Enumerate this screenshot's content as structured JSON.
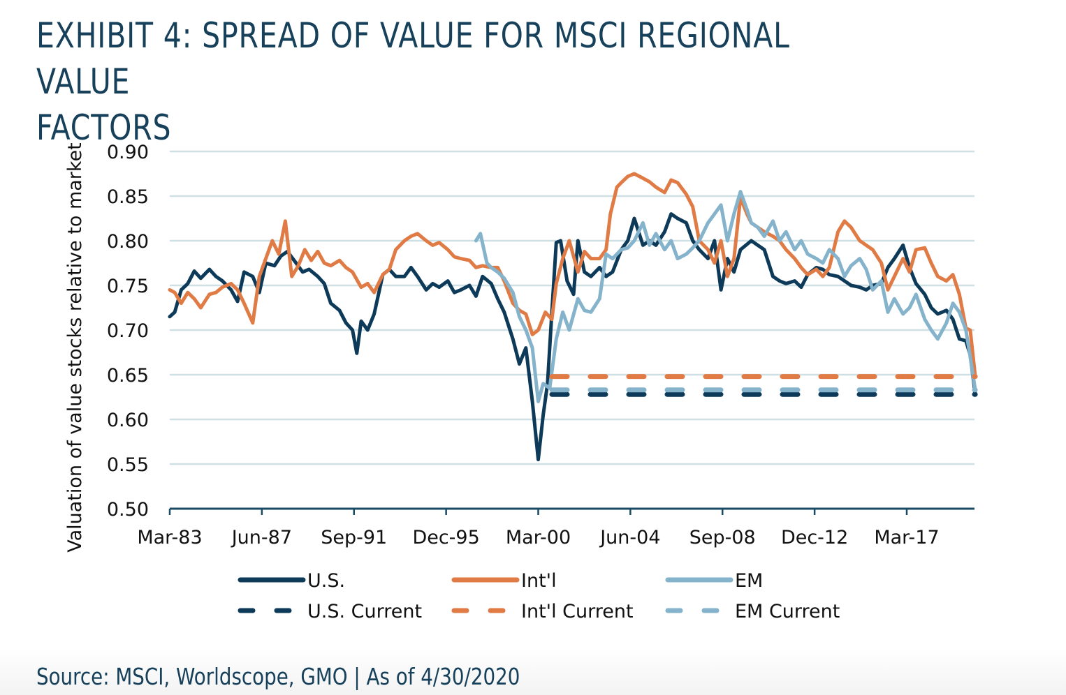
{
  "title": "EXHIBIT 4: SPREAD OF VALUE FOR MSCI REGIONAL VALUE FACTORS",
  "title_lines": [
    "EXHIBIT 4: SPREAD OF VALUE FOR MSCI REGIONAL VALUE",
    "FACTORS"
  ],
  "source": "Source: MSCI, Worldscope, GMO | As of 4/30/2020",
  "colors": {
    "us": "#0e3a5a",
    "intl": "#e07b45",
    "em": "#85b3cc",
    "grid": "#cfe0e5",
    "axis": "#1a4a64",
    "text": "#17405a"
  },
  "chart_data": {
    "type": "line",
    "title": "EXHIBIT 4: SPREAD OF VALUE FOR MSCI REGIONAL VALUE FACTORS",
    "xlabel": "",
    "ylabel": "Valuation of value stocks relative to market",
    "ylim": [
      0.5,
      0.9
    ],
    "yticks": [
      0.5,
      0.55,
      0.6,
      0.65,
      0.7,
      0.75,
      0.8,
      0.85,
      0.9
    ],
    "ytick_labels": [
      "0.50",
      "0.55",
      "0.60",
      "0.65",
      "0.70",
      "0.75",
      "0.80",
      "0.85",
      "0.90"
    ],
    "xlim": [
      1983.17,
      2020.33
    ],
    "xticks": [
      1983.17,
      1987.42,
      1991.67,
      1995.92,
      2000.17,
      2004.42,
      2008.67,
      2012.92,
      2017.17
    ],
    "xtick_labels": [
      "Mar-83",
      "Jun-87",
      "Sep-91",
      "Dec-95",
      "Mar-00",
      "Jun-04",
      "Sep-08",
      "Dec-12",
      "Mar-17"
    ],
    "grid": true,
    "legend_position": "bottom",
    "series": [
      {
        "name": "U.S.",
        "key": "us",
        "style": "solid",
        "x": [
          1983.17,
          1983.4,
          1983.7,
          1984.0,
          1984.3,
          1984.6,
          1985.0,
          1985.3,
          1985.6,
          1986.0,
          1986.3,
          1986.6,
          1987.0,
          1987.3,
          1987.6,
          1988.0,
          1988.3,
          1988.6,
          1989.0,
          1989.3,
          1989.6,
          1990.0,
          1990.3,
          1990.6,
          1991.0,
          1991.3,
          1991.6,
          1991.8,
          1992.0,
          1992.3,
          1992.6,
          1993.0,
          1993.3,
          1993.6,
          1994.0,
          1994.3,
          1994.6,
          1995.0,
          1995.3,
          1995.6,
          1996.0,
          1996.3,
          1996.6,
          1997.0,
          1997.3,
          1997.6,
          1998.0,
          1998.3,
          1998.6,
          1999.0,
          1999.3,
          1999.6,
          1999.9,
          2000.17,
          2000.4,
          2000.6,
          2000.8,
          2001.0,
          2001.2,
          2001.5,
          2001.8,
          2002.0,
          2002.3,
          2002.6,
          2003.0,
          2003.3,
          2003.6,
          2004.0,
          2004.3,
          2004.6,
          2005.0,
          2005.3,
          2005.6,
          2006.0,
          2006.3,
          2006.6,
          2007.0,
          2007.3,
          2007.6,
          2008.0,
          2008.3,
          2008.6,
          2008.9,
          2009.2,
          2009.5,
          2010.0,
          2010.3,
          2010.6,
          2011.0,
          2011.3,
          2011.6,
          2012.0,
          2012.3,
          2012.6,
          2013.0,
          2013.3,
          2013.6,
          2014.0,
          2014.3,
          2014.6,
          2015.0,
          2015.3,
          2015.6,
          2016.0,
          2016.3,
          2016.6,
          2017.0,
          2017.3,
          2017.6,
          2018.0,
          2018.3,
          2018.6,
          2019.0,
          2019.3,
          2019.6,
          2019.9,
          2020.1,
          2020.33
        ],
        "y": [
          0.715,
          0.72,
          0.745,
          0.752,
          0.766,
          0.758,
          0.768,
          0.76,
          0.755,
          0.745,
          0.732,
          0.765,
          0.76,
          0.742,
          0.775,
          0.772,
          0.783,
          0.788,
          0.775,
          0.765,
          0.768,
          0.76,
          0.752,
          0.73,
          0.722,
          0.708,
          0.7,
          0.674,
          0.71,
          0.7,
          0.718,
          0.762,
          0.768,
          0.76,
          0.76,
          0.77,
          0.76,
          0.745,
          0.752,
          0.748,
          0.755,
          0.742,
          0.745,
          0.75,
          0.738,
          0.76,
          0.752,
          0.735,
          0.72,
          0.69,
          0.662,
          0.68,
          0.62,
          0.555,
          0.605,
          0.64,
          0.72,
          0.798,
          0.8,
          0.755,
          0.74,
          0.8,
          0.765,
          0.76,
          0.77,
          0.76,
          0.765,
          0.79,
          0.8,
          0.825,
          0.795,
          0.8,
          0.795,
          0.81,
          0.83,
          0.825,
          0.82,
          0.8,
          0.79,
          0.78,
          0.8,
          0.745,
          0.78,
          0.765,
          0.79,
          0.8,
          0.795,
          0.79,
          0.76,
          0.755,
          0.752,
          0.755,
          0.748,
          0.762,
          0.77,
          0.768,
          0.762,
          0.76,
          0.755,
          0.75,
          0.748,
          0.745,
          0.75,
          0.752,
          0.77,
          0.78,
          0.795,
          0.77,
          0.752,
          0.74,
          0.725,
          0.718,
          0.722,
          0.712,
          0.69,
          0.688,
          0.672,
          0.628
        ]
      },
      {
        "name": "Int'l",
        "key": "intl",
        "style": "solid",
        "x": [
          1983.17,
          1983.4,
          1983.7,
          1984.0,
          1984.3,
          1984.6,
          1985.0,
          1985.3,
          1985.6,
          1986.0,
          1986.3,
          1986.6,
          1987.0,
          1987.3,
          1987.6,
          1987.9,
          1988.2,
          1988.5,
          1988.8,
          1989.1,
          1989.4,
          1989.7,
          1990.0,
          1990.3,
          1990.6,
          1991.0,
          1991.3,
          1991.6,
          1992.0,
          1992.3,
          1992.6,
          1993.0,
          1993.3,
          1993.6,
          1994.0,
          1994.3,
          1994.6,
          1995.0,
          1995.3,
          1995.6,
          1996.0,
          1996.3,
          1996.6,
          1997.0,
          1997.3,
          1997.6,
          1998.0,
          1998.3,
          1998.6,
          1999.0,
          1999.3,
          1999.6,
          1999.9,
          2000.17,
          2000.5,
          2000.8,
          2001.0,
          2001.3,
          2001.6,
          2002.0,
          2002.3,
          2002.6,
          2003.0,
          2003.3,
          2003.5,
          2003.8,
          2004.0,
          2004.3,
          2004.6,
          2005.0,
          2005.3,
          2005.6,
          2006.0,
          2006.3,
          2006.6,
          2007.0,
          2007.3,
          2007.6,
          2008.0,
          2008.3,
          2008.6,
          2008.9,
          2009.2,
          2009.5,
          2009.8,
          2010.0,
          2010.3,
          2010.6,
          2011.0,
          2011.3,
          2011.6,
          2012.0,
          2012.3,
          2012.6,
          2013.0,
          2013.3,
          2013.6,
          2014.0,
          2014.3,
          2014.6,
          2015.0,
          2015.3,
          2015.6,
          2016.0,
          2016.3,
          2016.6,
          2017.0,
          2017.3,
          2017.6,
          2018.0,
          2018.3,
          2018.6,
          2019.0,
          2019.3,
          2019.6,
          2019.9,
          2020.1,
          2020.33
        ],
        "y": [
          0.745,
          0.742,
          0.73,
          0.742,
          0.735,
          0.725,
          0.74,
          0.742,
          0.748,
          0.752,
          0.745,
          0.73,
          0.708,
          0.76,
          0.78,
          0.8,
          0.785,
          0.822,
          0.76,
          0.772,
          0.79,
          0.778,
          0.788,
          0.775,
          0.772,
          0.778,
          0.77,
          0.765,
          0.748,
          0.752,
          0.742,
          0.762,
          0.768,
          0.79,
          0.8,
          0.805,
          0.808,
          0.8,
          0.795,
          0.798,
          0.79,
          0.782,
          0.78,
          0.778,
          0.77,
          0.772,
          0.77,
          0.77,
          0.755,
          0.73,
          0.722,
          0.718,
          0.695,
          0.7,
          0.72,
          0.712,
          0.752,
          0.78,
          0.8,
          0.765,
          0.788,
          0.78,
          0.78,
          0.79,
          0.83,
          0.86,
          0.865,
          0.872,
          0.875,
          0.87,
          0.866,
          0.86,
          0.854,
          0.868,
          0.865,
          0.852,
          0.838,
          0.8,
          0.79,
          0.775,
          0.8,
          0.76,
          0.78,
          0.848,
          0.83,
          0.82,
          0.815,
          0.81,
          0.805,
          0.8,
          0.79,
          0.78,
          0.77,
          0.762,
          0.768,
          0.76,
          0.77,
          0.81,
          0.822,
          0.815,
          0.8,
          0.795,
          0.79,
          0.775,
          0.745,
          0.76,
          0.78,
          0.765,
          0.79,
          0.792,
          0.775,
          0.76,
          0.755,
          0.762,
          0.74,
          0.702,
          0.7,
          0.648
        ]
      },
      {
        "name": "EM",
        "key": "em",
        "style": "solid",
        "x": [
          1997.3,
          1997.5,
          1997.8,
          1998.0,
          1998.3,
          1998.6,
          1999.0,
          1999.3,
          1999.6,
          1999.9,
          2000.17,
          2000.4,
          2000.7,
          2001.0,
          2001.3,
          2001.6,
          2002.0,
          2002.3,
          2002.6,
          2003.0,
          2003.3,
          2003.6,
          2004.0,
          2004.3,
          2004.6,
          2005.0,
          2005.3,
          2005.6,
          2006.0,
          2006.3,
          2006.6,
          2007.0,
          2007.3,
          2007.6,
          2008.0,
          2008.3,
          2008.6,
          2008.9,
          2009.2,
          2009.5,
          2009.8,
          2010.0,
          2010.3,
          2010.6,
          2011.0,
          2011.3,
          2011.6,
          2012.0,
          2012.3,
          2012.6,
          2013.0,
          2013.3,
          2013.6,
          2014.0,
          2014.3,
          2014.6,
          2015.0,
          2015.3,
          2015.6,
          2016.0,
          2016.3,
          2016.6,
          2017.0,
          2017.3,
          2017.6,
          2018.0,
          2018.3,
          2018.6,
          2019.0,
          2019.3,
          2019.6,
          2019.9,
          2020.1,
          2020.33
        ],
        "y": [
          0.8,
          0.808,
          0.775,
          0.77,
          0.765,
          0.758,
          0.742,
          0.715,
          0.7,
          0.68,
          0.62,
          0.64,
          0.635,
          0.69,
          0.72,
          0.7,
          0.735,
          0.722,
          0.72,
          0.735,
          0.785,
          0.78,
          0.79,
          0.792,
          0.8,
          0.82,
          0.795,
          0.808,
          0.79,
          0.8,
          0.78,
          0.785,
          0.792,
          0.8,
          0.82,
          0.83,
          0.84,
          0.8,
          0.83,
          0.855,
          0.835,
          0.82,
          0.815,
          0.805,
          0.822,
          0.8,
          0.81,
          0.79,
          0.8,
          0.785,
          0.78,
          0.775,
          0.79,
          0.78,
          0.76,
          0.772,
          0.78,
          0.768,
          0.745,
          0.755,
          0.72,
          0.735,
          0.718,
          0.725,
          0.74,
          0.712,
          0.7,
          0.69,
          0.708,
          0.73,
          0.72,
          0.7,
          0.67,
          0.633
        ]
      },
      {
        "name": "U.S. Current",
        "key": "us",
        "style": "dashed",
        "x": [
          2000.8,
          2020.33
        ],
        "y": [
          0.628,
          0.628
        ]
      },
      {
        "name": "Int'l Current",
        "key": "intl",
        "style": "dashed",
        "x": [
          2000.8,
          2020.33
        ],
        "y": [
          0.648,
          0.648
        ]
      },
      {
        "name": "EM Current",
        "key": "em",
        "style": "dashed",
        "x": [
          2000.8,
          2020.33
        ],
        "y": [
          0.633,
          0.633
        ]
      }
    ]
  },
  "legend": [
    {
      "label": "U.S.",
      "key": "us",
      "style": "solid"
    },
    {
      "label": "Int'l",
      "key": "intl",
      "style": "solid"
    },
    {
      "label": "EM",
      "key": "em",
      "style": "solid"
    },
    {
      "label": "U.S. Current",
      "key": "us",
      "style": "dashed"
    },
    {
      "label": "Int'l Current",
      "key": "intl",
      "style": "dashed"
    },
    {
      "label": "EM Current",
      "key": "em",
      "style": "dashed"
    }
  ]
}
